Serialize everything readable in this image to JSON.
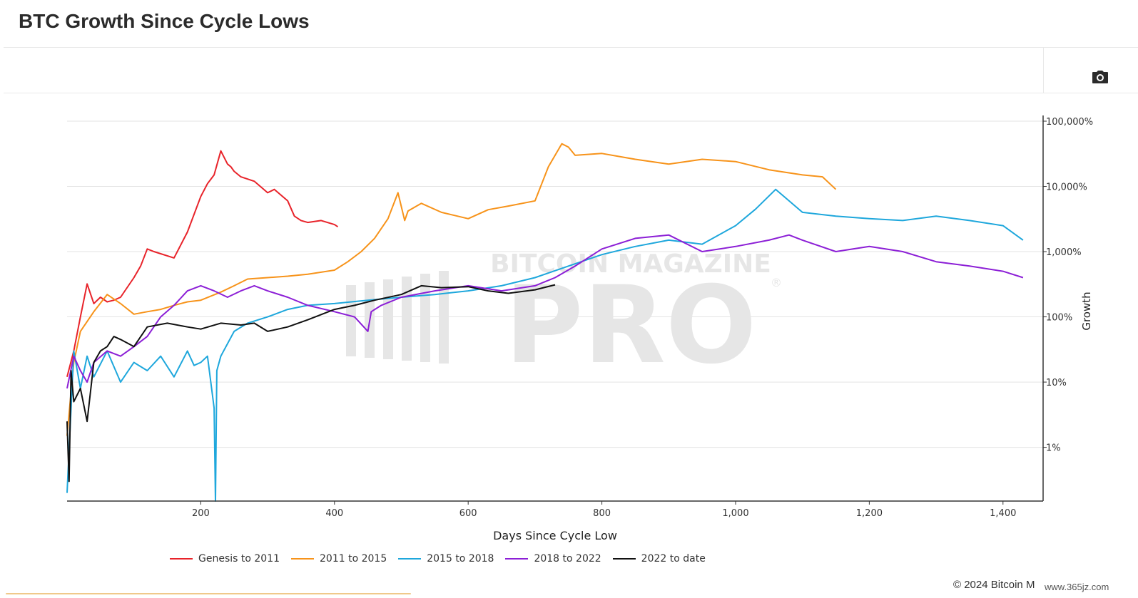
{
  "page_title": "BTC Growth Since Cycle Lows",
  "footer": "© 2024 Bitcoin M",
  "footer_watermark": "www.365jz.com",
  "watermark": {
    "line1": "BITCOIN MAGAZINE",
    "line2": "PRO",
    "registered": "®"
  },
  "colors": {
    "grid": "#e3e3e3",
    "axis": "#333333",
    "watermark": "#e6e6e6"
  },
  "chart_data": {
    "type": "line",
    "title": "BTC Growth Since Cycle Lows",
    "xlabel": "Days Since Cycle Low",
    "ylabel": "Growth",
    "y_scale": "log",
    "xlim": [
      0,
      1460
    ],
    "ylim": [
      0.15,
      100000
    ],
    "x_ticks": [
      200,
      400,
      600,
      800,
      1000,
      1200,
      1400
    ],
    "x_tick_labels": [
      "200",
      "400",
      "600",
      "800",
      "1,000",
      "1,200",
      "1,400"
    ],
    "y_ticks": [
      1,
      10,
      100,
      1000,
      10000,
      100000
    ],
    "y_tick_labels": [
      "1%",
      "10%",
      "100%",
      "1,000%",
      "10,000%",
      "100,000%"
    ],
    "grid": true,
    "legend_position": "bottom",
    "series": [
      {
        "name": "Genesis to 2011",
        "color": "#e8232a",
        "x": [
          0,
          10,
          20,
          30,
          40,
          50,
          60,
          70,
          80,
          100,
          110,
          120,
          130,
          160,
          180,
          200,
          210,
          220,
          230,
          240,
          245,
          250,
          260,
          280,
          300,
          310,
          330,
          340,
          350,
          360,
          380,
          400,
          405
        ],
        "y": [
          12,
          30,
          100,
          320,
          160,
          200,
          170,
          180,
          200,
          400,
          600,
          1100,
          1000,
          800,
          2000,
          7000,
          11000,
          15000,
          35000,
          22000,
          20000,
          17000,
          14000,
          12000,
          8000,
          9000,
          6000,
          3500,
          3000,
          2800,
          3000,
          2600,
          2400
        ]
      },
      {
        "name": "2011 to 2015",
        "color": "#f7931a",
        "x": [
          0,
          10,
          20,
          40,
          60,
          80,
          100,
          120,
          140,
          160,
          180,
          200,
          230,
          250,
          270,
          300,
          330,
          360,
          400,
          420,
          440,
          460,
          480,
          495,
          505,
          510,
          530,
          560,
          600,
          630,
          660,
          700,
          720,
          740,
          750,
          760,
          800,
          850,
          900,
          950,
          1000,
          1050,
          1100,
          1130,
          1150
        ],
        "y": [
          1.5,
          20,
          60,
          120,
          220,
          160,
          110,
          120,
          130,
          150,
          170,
          180,
          240,
          300,
          380,
          400,
          420,
          450,
          520,
          700,
          1000,
          1600,
          3200,
          8000,
          3000,
          4200,
          5500,
          4000,
          3200,
          4400,
          5000,
          6000,
          20000,
          45000,
          40000,
          30000,
          32000,
          26000,
          22000,
          26000,
          24000,
          18000,
          15000,
          14000,
          9000
        ]
      },
      {
        "name": "2015 to 2018",
        "color": "#1ea7dc",
        "x": [
          0,
          10,
          20,
          30,
          40,
          60,
          80,
          100,
          120,
          140,
          160,
          180,
          190,
          200,
          210,
          220,
          222,
          224,
          230,
          250,
          270,
          300,
          330,
          360,
          400,
          450,
          500,
          550,
          600,
          650,
          700,
          750,
          800,
          850,
          900,
          950,
          1000,
          1030,
          1060,
          1080,
          1100,
          1150,
          1200,
          1250,
          1300,
          1350,
          1400,
          1430
        ],
        "y": [
          0.2,
          30,
          8,
          25,
          12,
          30,
          10,
          20,
          15,
          25,
          12,
          30,
          18,
          20,
          25,
          4,
          0.15,
          15,
          25,
          60,
          80,
          100,
          130,
          150,
          160,
          180,
          200,
          220,
          250,
          300,
          400,
          600,
          900,
          1200,
          1500,
          1300,
          2500,
          4500,
          9000,
          6000,
          4000,
          3500,
          3200,
          3000,
          3500,
          3000,
          2500,
          1500
        ]
      },
      {
        "name": "2018 to 2022",
        "color": "#8c1fd6",
        "x": [
          0,
          10,
          20,
          30,
          40,
          60,
          80,
          100,
          120,
          140,
          160,
          180,
          200,
          220,
          240,
          260,
          280,
          300,
          330,
          360,
          400,
          430,
          450,
          455,
          470,
          500,
          550,
          600,
          650,
          700,
          730,
          760,
          800,
          850,
          900,
          950,
          1000,
          1050,
          1080,
          1100,
          1150,
          1200,
          1250,
          1300,
          1350,
          1400,
          1430
        ],
        "y": [
          8,
          25,
          15,
          10,
          20,
          30,
          25,
          35,
          50,
          100,
          150,
          250,
          300,
          250,
          200,
          250,
          300,
          250,
          200,
          150,
          120,
          100,
          60,
          120,
          150,
          200,
          250,
          300,
          250,
          300,
          400,
          600,
          1100,
          1600,
          1800,
          1000,
          1200,
          1500,
          1800,
          1500,
          1000,
          1200,
          1000,
          700,
          600,
          500,
          400
        ]
      },
      {
        "name": "2022 to date",
        "color": "#111111",
        "x": [
          0,
          3,
          6,
          10,
          20,
          30,
          40,
          50,
          60,
          70,
          80,
          100,
          120,
          150,
          180,
          200,
          230,
          260,
          280,
          300,
          330,
          360,
          400,
          430,
          460,
          500,
          530,
          560,
          600,
          630,
          660,
          700,
          730
        ],
        "y": [
          2.5,
          0.3,
          15,
          5,
          8,
          2.5,
          20,
          30,
          35,
          50,
          45,
          35,
          70,
          80,
          70,
          65,
          80,
          75,
          80,
          60,
          70,
          90,
          130,
          150,
          180,
          220,
          300,
          280,
          290,
          250,
          230,
          260,
          310
        ]
      }
    ]
  }
}
